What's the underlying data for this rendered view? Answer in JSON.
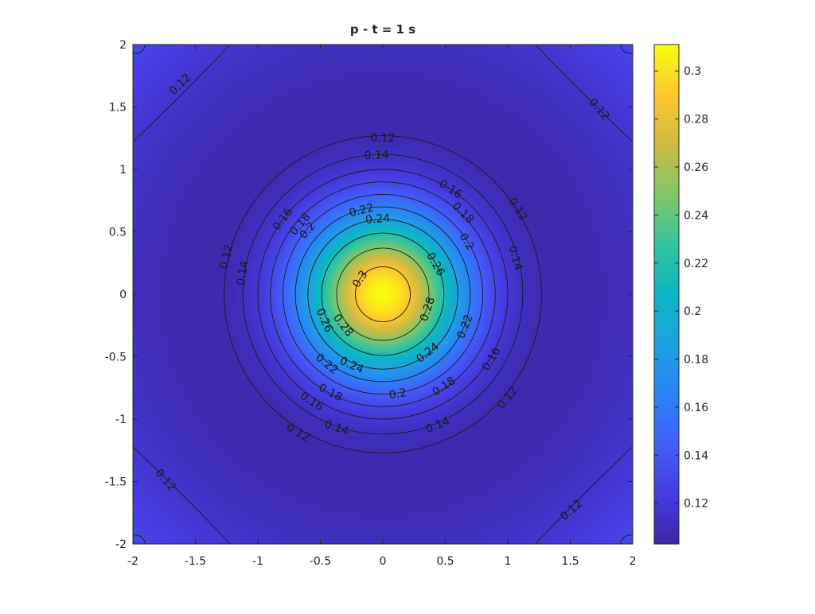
{
  "chart_data": {
    "type": "heatmap",
    "title": "p - t = 1 s",
    "xlabel": "",
    "ylabel": "",
    "xlim": [
      -2,
      2
    ],
    "ylim": [
      -2,
      2
    ],
    "x_ticks": [
      -2,
      -1.5,
      -1,
      -0.5,
      0,
      0.5,
      1,
      1.5,
      2
    ],
    "y_ticks": [
      -2,
      -1.5,
      -1,
      -0.5,
      0,
      0.5,
      1,
      1.5,
      2
    ],
    "x_tick_labels": [
      "-2",
      "-1.5",
      "-1",
      "-0.5",
      "0",
      "0.5",
      "1",
      "1.5",
      "2"
    ],
    "y_tick_labels": [
      "-2",
      "-1.5",
      "-1",
      "-0.5",
      "0",
      "0.5",
      "1",
      "1.5",
      "2"
    ],
    "colormap": "parula",
    "color_range": [
      0.103,
      0.311
    ],
    "colorbar_ticks": [
      0.12,
      0.14,
      0.16,
      0.18,
      0.2,
      0.22,
      0.24,
      0.26,
      0.28,
      0.3
    ],
    "colorbar_tick_labels": [
      "0.12",
      "0.14",
      "0.16",
      "0.18",
      "0.2",
      "0.22",
      "0.24",
      "0.26",
      "0.28",
      "0.3"
    ],
    "field": {
      "peak_value": 0.311,
      "peak_location": [
        0,
        0
      ],
      "min_value": 0.103,
      "min_radius": 1.55,
      "corner_value": 0.13
    },
    "contour_levels": [
      0.12,
      0.14,
      0.16,
      0.18,
      0.2,
      0.22,
      0.24,
      0.26,
      0.28,
      0.3
    ],
    "contour_radii": {
      "0.12": 1.27,
      "0.14": 1.12,
      "0.16": 1.0,
      "0.18": 0.9,
      "0.2": 0.8,
      "0.22": 0.7,
      "0.24": 0.6,
      "0.26": 0.49,
      "0.28": 0.37,
      "0.3": 0.22
    },
    "contour_labels": [
      {
        "text": "0.12",
        "x": 0.0,
        "y": 1.25
      },
      {
        "text": "0.14",
        "x": -0.05,
        "y": 1.11
      },
      {
        "text": "0.16",
        "x": 0.54,
        "y": 0.84
      },
      {
        "text": "0.18",
        "x": 0.64,
        "y": 0.65
      },
      {
        "text": "0.2",
        "x": 0.67,
        "y": 0.42
      },
      {
        "text": "0.12",
        "x": 1.08,
        "y": 0.68
      },
      {
        "text": "0.14",
        "x": 1.06,
        "y": 0.29
      },
      {
        "text": "0.16",
        "x": -0.8,
        "y": 0.6
      },
      {
        "text": "0.18",
        "x": -0.66,
        "y": 0.56
      },
      {
        "text": "0.2",
        "x": -0.6,
        "y": 0.51
      },
      {
        "text": "0.22",
        "x": -0.17,
        "y": 0.67
      },
      {
        "text": "0.24",
        "x": -0.04,
        "y": 0.6
      },
      {
        "text": "0.26",
        "x": 0.42,
        "y": 0.24
      },
      {
        "text": "0.3",
        "x": -0.18,
        "y": 0.12
      },
      {
        "text": "0.28",
        "x": 0.36,
        "y": -0.12
      },
      {
        "text": "0.28",
        "x": -0.32,
        "y": -0.25
      },
      {
        "text": "0.26",
        "x": -0.47,
        "y": -0.21
      },
      {
        "text": "0.22",
        "x": 0.66,
        "y": -0.26
      },
      {
        "text": "0.12",
        "x": -1.25,
        "y": 0.3
      },
      {
        "text": "0.14",
        "x": -1.12,
        "y": 0.17
      },
      {
        "text": "0.24",
        "x": -0.25,
        "y": -0.57
      },
      {
        "text": "0.22",
        "x": -0.45,
        "y": -0.56
      },
      {
        "text": "0.24",
        "x": 0.36,
        "y": -0.47
      },
      {
        "text": "0.16",
        "x": 0.87,
        "y": -0.52
      },
      {
        "text": "0.18",
        "x": -0.42,
        "y": -0.79
      },
      {
        "text": "0.16",
        "x": -0.57,
        "y": -0.86
      },
      {
        "text": "0.2",
        "x": 0.12,
        "y": -0.8
      },
      {
        "text": "0.18",
        "x": 0.49,
        "y": -0.74
      },
      {
        "text": "0.12",
        "x": 1.0,
        "y": -0.83
      },
      {
        "text": "0.12",
        "x": -0.68,
        "y": -1.11
      },
      {
        "text": "0.14",
        "x": -0.37,
        "y": -1.07
      },
      {
        "text": "0.14",
        "x": 0.44,
        "y": -1.05
      },
      {
        "text": "0.12",
        "x": -1.62,
        "y": 1.68
      },
      {
        "text": "0.12",
        "x": 1.73,
        "y": 1.48
      },
      {
        "text": "0.12",
        "x": -1.74,
        "y": -1.49
      },
      {
        "text": "0.12",
        "x": 1.51,
        "y": -1.73
      }
    ],
    "grid": false,
    "legend": "none",
    "colorbar": "right"
  }
}
